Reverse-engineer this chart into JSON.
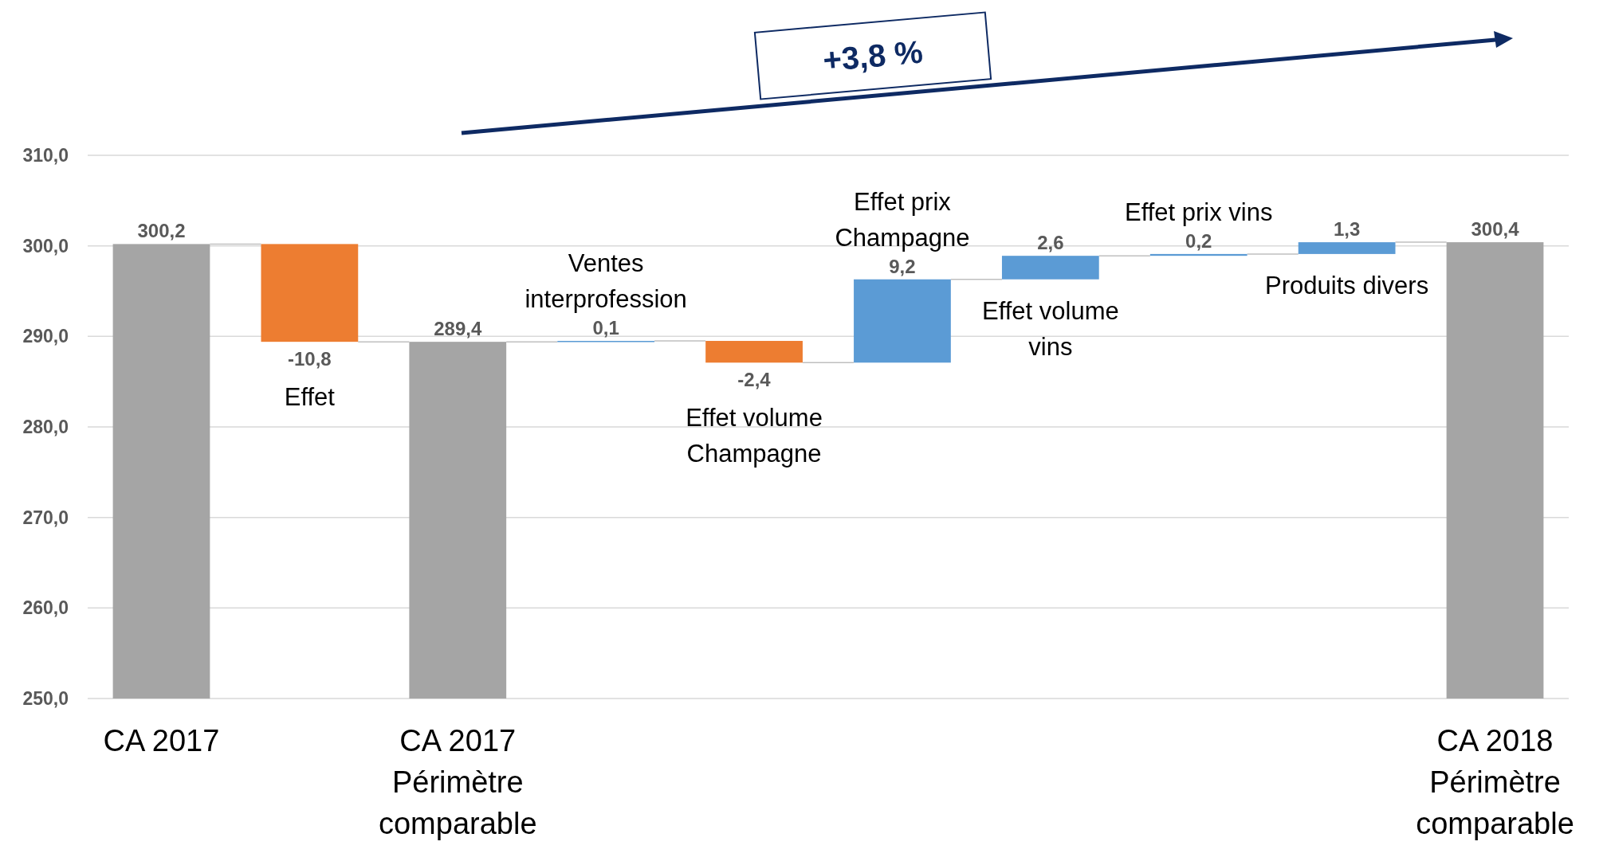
{
  "chart_data": {
    "type": "bar",
    "categories": [
      "CA 2017",
      "Effet",
      "CA 2017 Périmètre comparable",
      "Ventes interprofession",
      "Effet volume Champagne",
      "Effet prix Champagne",
      "Effet volume vins",
      "Effet prix vins",
      "Produits divers",
      "CA 2018 Périmètre comparable"
    ],
    "values": [
      300.2,
      -10.8,
      289.4,
      0.1,
      -2.4,
      9.2,
      2.6,
      0.2,
      1.3,
      300.4
    ],
    "base": [
      null,
      300.2,
      null,
      289.4,
      289.5,
      287.1,
      296.3,
      298.9,
      299.1,
      null
    ],
    "colors": [
      "#a5a5a5",
      "#ed7d31",
      "#a5a5a5",
      "#5b9bd5",
      "#ed7d31",
      "#5b9bd5",
      "#5b9bd5",
      "#5b9bd5",
      "#5b9bd5",
      "#a5a5a5"
    ],
    "value_labels": [
      "300,2",
      "-10,8",
      "289,4",
      "0,1",
      "-2,4",
      "9,2",
      "2,6",
      "0,2",
      "1,3",
      "300,4"
    ],
    "ylim": [
      250,
      310
    ],
    "yticks": [
      {
        "value": 250,
        "label": "250,0"
      },
      {
        "value": 260,
        "label": "260,0"
      },
      {
        "value": 270,
        "label": "270,0"
      },
      {
        "value": 280,
        "label": "280,0"
      },
      {
        "value": 290,
        "label": "290,0"
      },
      {
        "value": 300,
        "label": "300,0"
      },
      {
        "value": 310,
        "label": "310,0"
      }
    ],
    "grid": "y",
    "annotations": [
      "+3,8 %"
    ]
  }
}
